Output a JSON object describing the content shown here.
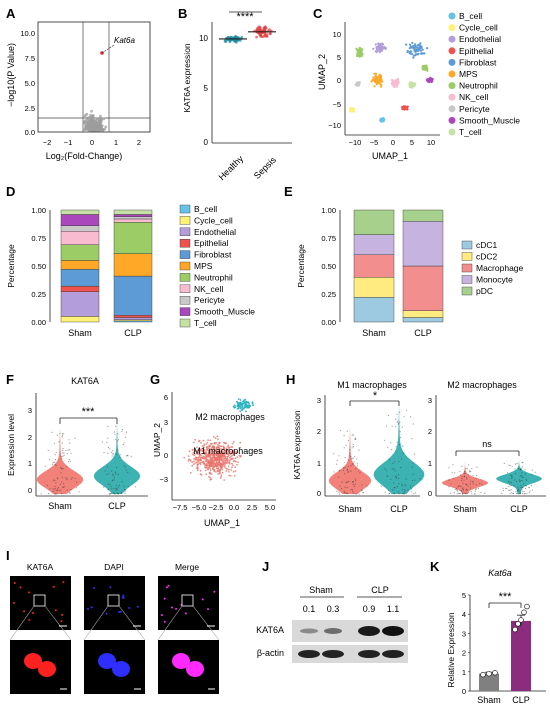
{
  "panels": {
    "A": {
      "label": "A",
      "annotation": "Kat6a",
      "ylabel": "−log10(P Value)",
      "xlabel": "Log₂(Fold-Change)",
      "xticks": [
        "−2",
        "−1",
        "0",
        "1",
        "2"
      ],
      "yticks": [
        "0.0",
        "2.5",
        "5.0",
        "7.5",
        "10.0"
      ]
    },
    "B": {
      "label": "B",
      "significance": "****",
      "ylabel": "KAT6A expression",
      "yticks": [
        "0",
        "5",
        "10"
      ],
      "categories": [
        "Healthy",
        "Sepsis"
      ]
    },
    "C": {
      "label": "C",
      "xlabel": "UMAP_1",
      "ylabel": "UMAP_2",
      "xticks": [
        "−10",
        "−5",
        "0",
        "5",
        "10"
      ],
      "yticks": [
        "−10",
        "−5",
        "0",
        "5",
        "10"
      ],
      "legend": [
        {
          "name": "B_cell",
          "color": "#66c2e8"
        },
        {
          "name": "Cycle_cell",
          "color": "#fff176"
        },
        {
          "name": "Endothelial",
          "color": "#b39ddb"
        },
        {
          "name": "Epithelial",
          "color": "#ef5350"
        },
        {
          "name": "Fibroblast",
          "color": "#5c9bd5"
        },
        {
          "name": "MPS",
          "color": "#ffa726"
        },
        {
          "name": "Neutrophil",
          "color": "#9ccc65"
        },
        {
          "name": "NK_cell",
          "color": "#f8bbd0"
        },
        {
          "name": "Pericyte",
          "color": "#c8c8c8"
        },
        {
          "name": "Smooth_Muscle",
          "color": "#ab47bc"
        },
        {
          "name": "T_cell",
          "color": "#c5e1a5"
        }
      ]
    },
    "D": {
      "label": "D",
      "ylabel": "Percentage"
    },
    "E": {
      "label": "E",
      "ylabel": "Percentage"
    },
    "F": {
      "label": "F",
      "title": "KAT6A",
      "significance": "***",
      "ylabel": "Expression level",
      "yticks": [
        "0",
        "1",
        "2",
        "3"
      ],
      "categories": [
        "Sham",
        "CLP"
      ]
    },
    "G": {
      "label": "G",
      "xlabel": "UMAP_1",
      "ylabel": "UMAP_2",
      "xticks": [
        "−7.5",
        "−5.0",
        "−2.5",
        "0.0",
        "2.5",
        "5.0"
      ],
      "yticks": [
        "−3",
        "0",
        "3",
        "6"
      ],
      "cluster_labels": [
        "M2 macrophages",
        "M1 macrophages"
      ]
    },
    "H": {
      "label": "H",
      "titles": [
        "M1 macrophages",
        "M2 macrophages"
      ],
      "significance": [
        "*",
        "ns"
      ],
      "ylabel": "KAT6A expression",
      "yticks": [
        "0",
        "1",
        "2",
        "3"
      ],
      "categories": [
        "Sham",
        "CLP"
      ]
    },
    "I": {
      "label": "I",
      "channels": [
        "KAT6A",
        "DAPI",
        "Merge"
      ]
    },
    "J": {
      "label": "J",
      "groups": [
        "Sham",
        "CLP"
      ],
      "ratios": [
        "0.1",
        "0.3",
        "0.9",
        "1.1"
      ],
      "rows": [
        "KAT6A",
        "β-actin"
      ]
    },
    "K": {
      "label": "K",
      "title": "Kat6a",
      "significance": "***",
      "ylabel": "Relative Expression",
      "yticks": [
        "0",
        "1",
        "2",
        "3",
        "4",
        "5"
      ],
      "categories": [
        "Sham",
        "CLP"
      ]
    }
  },
  "chart_data": [
    {
      "panel": "D",
      "type": "bar",
      "stacked": true,
      "categories": [
        "Sham",
        "CLP"
      ],
      "ylim": [
        0,
        1
      ],
      "yticks": [
        "0.00",
        "0.25",
        "0.50",
        "0.75",
        "1.00"
      ],
      "ylabel": "Percentage",
      "series": [
        {
          "name": "B_cell",
          "color": "#66c2e8",
          "values": [
            0.0,
            0.01
          ]
        },
        {
          "name": "Cycle_cell",
          "color": "#fff176",
          "values": [
            0.05,
            0.01
          ]
        },
        {
          "name": "Endothelial",
          "color": "#b39ddb",
          "values": [
            0.22,
            0.02
          ]
        },
        {
          "name": "Epithelial",
          "color": "#ef5350",
          "values": [
            0.05,
            0.02
          ]
        },
        {
          "name": "Fibroblast",
          "color": "#5c9bd5",
          "values": [
            0.15,
            0.35
          ]
        },
        {
          "name": "MPS",
          "color": "#ffa726",
          "values": [
            0.08,
            0.2
          ]
        },
        {
          "name": "Neutrophil",
          "color": "#9ccc65",
          "values": [
            0.14,
            0.28
          ]
        },
        {
          "name": "NK_cell",
          "color": "#f8bbd0",
          "values": [
            0.12,
            0.03
          ]
        },
        {
          "name": "Pericyte",
          "color": "#c8c8c8",
          "values": [
            0.05,
            0.02
          ]
        },
        {
          "name": "Smooth_Muscle",
          "color": "#ab47bc",
          "values": [
            0.1,
            0.02
          ]
        },
        {
          "name": "T_cell",
          "color": "#c5e1a5",
          "values": [
            0.04,
            0.04
          ]
        }
      ]
    },
    {
      "panel": "E",
      "type": "bar",
      "stacked": true,
      "categories": [
        "Sham",
        "CLP"
      ],
      "ylim": [
        0,
        1
      ],
      "yticks": [
        "0.00",
        "0.25",
        "0.50",
        "0.75",
        "1.00"
      ],
      "ylabel": "Percentage",
      "series": [
        {
          "name": "cDC1",
          "color": "#9ecae1",
          "values": [
            0.22,
            0.04
          ]
        },
        {
          "name": "cDC2",
          "color": "#ffeb80",
          "values": [
            0.18,
            0.06
          ]
        },
        {
          "name": "Macrophage",
          "color": "#f28e8e",
          "values": [
            0.2,
            0.4
          ]
        },
        {
          "name": "Monocyte",
          "color": "#c7b3e0",
          "values": [
            0.18,
            0.4
          ]
        },
        {
          "name": "pDC",
          "color": "#a8d08d",
          "values": [
            0.22,
            0.1
          ]
        }
      ]
    },
    {
      "panel": "K",
      "type": "bar",
      "categories": [
        "Sham",
        "CLP"
      ],
      "values": [
        0.9,
        3.65
      ],
      "errors": [
        0.08,
        0.3
      ],
      "points": [
        [
          0.85,
          0.9,
          0.95
        ],
        [
          3.2,
          3.5,
          3.7,
          4.1,
          4.4
        ]
      ],
      "colors": [
        "#808080",
        "#8b2c7f"
      ],
      "ylim": [
        0,
        5
      ],
      "ylabel": "Relative Expression",
      "title": "Kat6a"
    }
  ]
}
